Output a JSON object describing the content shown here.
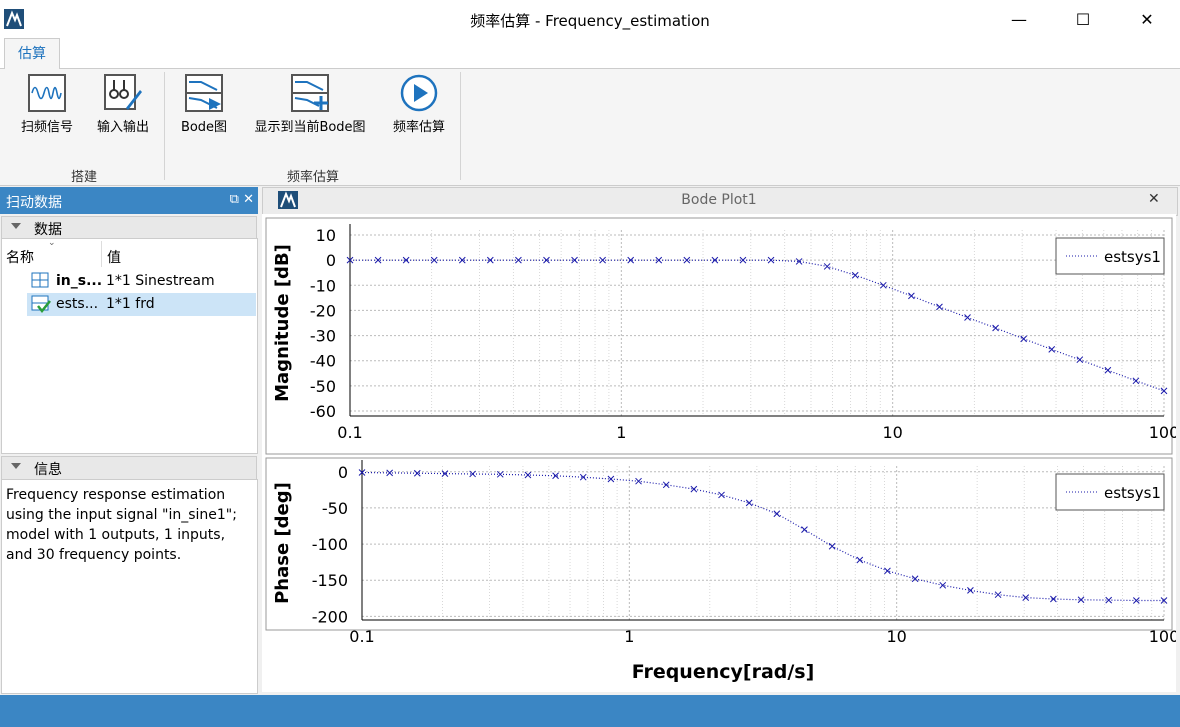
{
  "window": {
    "title": "频率估算 - Frequency_estimation",
    "minimize": "—",
    "maximize": "☐",
    "close": "✕"
  },
  "ribbon": {
    "tab": "估算",
    "buttons": [
      "扫频信号",
      "输入输出",
      "Bode图",
      "显示到当前Bode图",
      "频率估算"
    ],
    "groups": [
      "搭建",
      "频率估算"
    ]
  },
  "left_panel": {
    "title": "扫动数据",
    "data_section": "数据",
    "col_name": "名称",
    "col_value": "值",
    "rows": [
      {
        "name": "in_s...",
        "value": "1*1 Sinestream"
      },
      {
        "name": "ests...",
        "value": "1*1 frd"
      }
    ],
    "info_section": "信息",
    "info_text": "Frequency response estimation using the input signal \"in_sine1\"; model with 1 outputs, 1 inputs, and 30 frequency points."
  },
  "document": {
    "title": "Bode Plot1",
    "close": "✕"
  },
  "colors": {
    "accent": "#3b86c4",
    "series": "#1a1aaa",
    "grid": "#cfcfcf"
  },
  "chart_data": [
    {
      "type": "line",
      "ylabel": "Magnitude [dB]",
      "xscale": "log",
      "xlim": [
        0.1,
        100
      ],
      "ylim": [
        -62,
        12
      ],
      "yticks": [
        10,
        0,
        -10,
        -20,
        -30,
        -40,
        -50,
        -60
      ],
      "xticks": [
        "0.1",
        "1",
        "10",
        "100"
      ],
      "legend": "top-right",
      "grid": true,
      "series": [
        {
          "name": "estsys1",
          "x": [
            0.1,
            0.1269,
            0.161,
            0.2043,
            0.2593,
            0.329,
            0.4175,
            0.5298,
            0.6723,
            0.8532,
            1.0826,
            1.3738,
            1.7433,
            2.2122,
            2.8072,
            3.5622,
            4.5204,
            5.7362,
            7.279,
            9.2367,
            11.721,
            14.8735,
            18.8739,
            23.9503,
            30.392,
            38.5662,
            48.939,
            62.1017,
            78.8046,
            100
          ],
          "y": [
            0,
            0,
            0,
            0,
            0,
            0,
            0,
            0,
            0,
            0,
            0,
            0,
            0,
            0,
            0,
            0,
            -0.5,
            -2.5,
            -6,
            -10,
            -14.2,
            -18.6,
            -22.8,
            -27,
            -31.3,
            -35.5,
            -39.6,
            -43.8,
            -48,
            -52
          ]
        }
      ]
    },
    {
      "type": "line",
      "ylabel": "Phase [deg]",
      "xlabel": "Frequency[rad/s]",
      "xscale": "log",
      "xlim": [
        0.1,
        100
      ],
      "ylim": [
        -205,
        8
      ],
      "yticks": [
        0,
        -50,
        -100,
        -150,
        -200
      ],
      "xticks": [
        "0.1",
        "1",
        "10",
        "100"
      ],
      "legend": "top-right",
      "grid": true,
      "series": [
        {
          "name": "estsys1",
          "x": [
            0.1,
            0.1269,
            0.161,
            0.2043,
            0.2593,
            0.329,
            0.4175,
            0.5298,
            0.6723,
            0.8532,
            1.0826,
            1.3738,
            1.7433,
            2.2122,
            2.8072,
            3.5622,
            4.5204,
            5.7362,
            7.279,
            9.2367,
            11.721,
            14.8735,
            18.8739,
            23.9503,
            30.392,
            38.5662,
            48.939,
            62.1017,
            78.8046,
            100
          ],
          "y": [
            -1,
            -1.5,
            -2,
            -2.5,
            -3,
            -3.5,
            -4.5,
            -5.5,
            -7.5,
            -10,
            -13,
            -18,
            -24,
            -32,
            -43,
            -58,
            -80,
            -103,
            -122,
            -137,
            -148,
            -157,
            -164,
            -170,
            -174,
            -176,
            -177,
            -177.5,
            -178,
            -178
          ]
        }
      ]
    }
  ]
}
